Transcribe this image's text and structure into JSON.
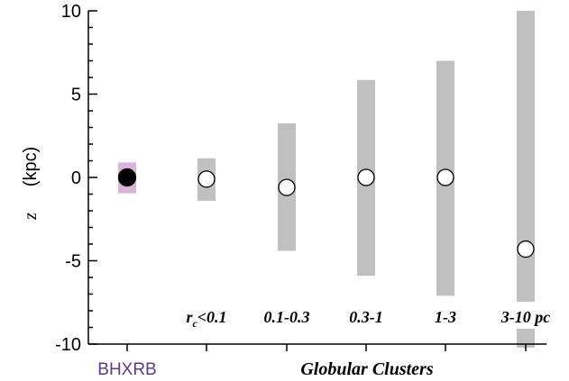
{
  "chart_data": {
    "type": "scatter",
    "xlabel": "",
    "ylabel": "(kpc)",
    "ylabel_symbol": "z",
    "ylim": [
      -10,
      10
    ],
    "yticks": [
      "10",
      "5",
      "0",
      "-5",
      "-10"
    ],
    "grid": false,
    "colors": {
      "bh_box": "#d8b4d8",
      "bh_label": "#5b3a8c",
      "range_bar": "#c0c0c0",
      "marker_open": "#ffffff",
      "marker_filled": "#000000"
    },
    "group_label": "Globular Clusters",
    "categories": [
      {
        "key": "bhxrb",
        "label": "BHXRB",
        "z": 0.0,
        "range": [
          -0.95,
          0.9
        ],
        "filled": true
      },
      {
        "key": "rc01",
        "label_main": "r",
        "label_sub": "c",
        "label_rest": "<0.1",
        "z": -0.1,
        "range": [
          -1.4,
          1.15
        ],
        "filled": false
      },
      {
        "key": "rc0103",
        "label": "0.1-0.3",
        "z": -0.6,
        "range": [
          -4.4,
          3.25
        ],
        "filled": false
      },
      {
        "key": "rc031",
        "label": "0.3-1",
        "z": 0.0,
        "range": [
          -5.9,
          5.85
        ],
        "filled": false
      },
      {
        "key": "rc13",
        "label": "1-3",
        "z": 0.0,
        "range": [
          -7.1,
          7.0
        ],
        "filled": false
      },
      {
        "key": "rc310",
        "label": "3-10 pc",
        "z": -4.3,
        "range": [
          -10.5,
          10.0
        ],
        "filled": false
      }
    ]
  }
}
